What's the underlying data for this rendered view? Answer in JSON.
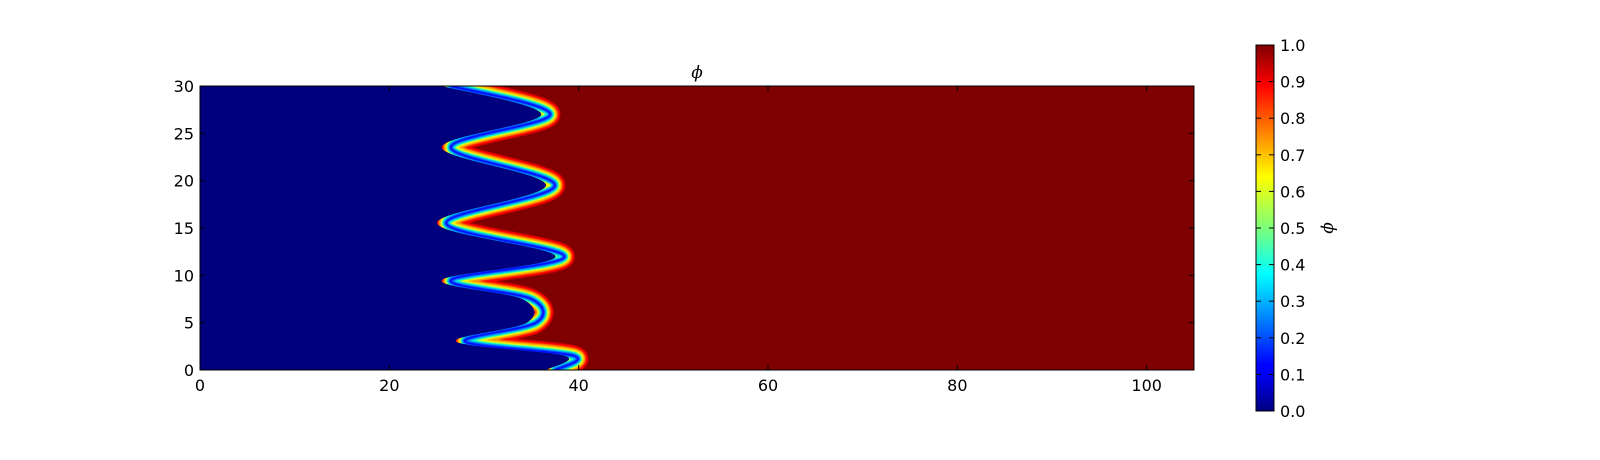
{
  "chart_data": {
    "type": "heatmap",
    "title": "ϕ",
    "xlabel": "",
    "ylabel": "",
    "xlim": [
      0,
      105
    ],
    "ylim": [
      0,
      30
    ],
    "x_ticks": [
      "0",
      "20",
      "40",
      "60",
      "80",
      "100"
    ],
    "y_ticks": [
      "0",
      "5",
      "10",
      "15",
      "20",
      "25",
      "30"
    ],
    "colormap": "jet",
    "value_range": [
      0.0,
      1.0
    ],
    "left_phase_value": 0.0,
    "right_phase_value": 1.0,
    "colors": {
      "low": "#00007f",
      "high": "#7f0000"
    },
    "interface_x_at_y": [
      {
        "y": 0.0,
        "x": 37.5
      },
      {
        "y": 1.5,
        "x": 39.5
      },
      {
        "y": 3.0,
        "x": 28.0
      },
      {
        "y": 5.0,
        "x": 35.5
      },
      {
        "y": 7.5,
        "x": 35.0
      },
      {
        "y": 9.5,
        "x": 26.5
      },
      {
        "y": 12.0,
        "x": 38.5
      },
      {
        "y": 15.5,
        "x": 26.0
      },
      {
        "y": 19.5,
        "x": 37.5
      },
      {
        "y": 23.5,
        "x": 26.5
      },
      {
        "y": 27.0,
        "x": 37.0
      },
      {
        "y": 30.0,
        "x": 26.5
      }
    ],
    "colorbar": {
      "label": "ϕ",
      "ticks": [
        "0.0",
        "0.1",
        "0.2",
        "0.3",
        "0.4",
        "0.5",
        "0.6",
        "0.7",
        "0.8",
        "0.9",
        "1.0"
      ]
    }
  }
}
